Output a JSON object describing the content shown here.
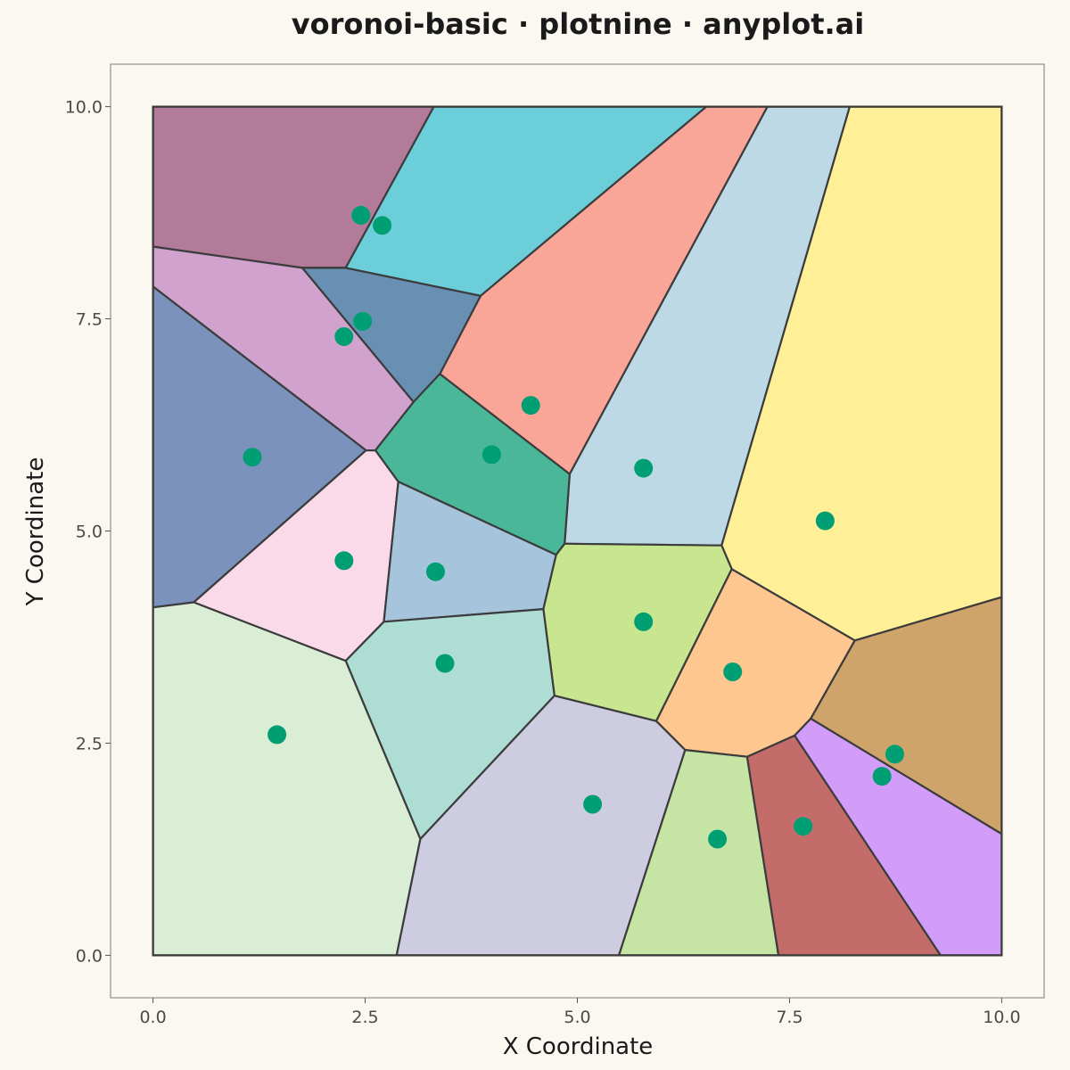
{
  "chart_data": {
    "type": "scatter",
    "subtype": "voronoi",
    "title": "voronoi-basic · plotnine · anyplot.ai",
    "xlabel": "X Coordinate",
    "ylabel": "Y Coordinate",
    "xlim": [
      -0.5,
      10.5
    ],
    "ylim": [
      -0.5,
      10.5
    ],
    "bounds": [
      0,
      10,
      0,
      10
    ],
    "x_ticks": [
      0,
      2.5,
      5,
      7.5,
      10
    ],
    "y_ticks": [
      0,
      2.5,
      5,
      7.5,
      10
    ],
    "x_tick_labels": [
      "0.0",
      "2.5",
      "5.0",
      "7.5",
      "10.0"
    ],
    "y_tick_labels": [
      "0.0",
      "2.5",
      "5.0",
      "7.5",
      "10.0"
    ],
    "grid": false,
    "point_color": "#009E73",
    "edge_color": "#3C3C3C",
    "background": "#FAF8F1",
    "cells": [
      {
        "site": [
          2.45,
          8.72
        ],
        "color": "#B27B99",
        "vertices": [
          [
            0,
            8.35
          ],
          [
            0,
            10
          ],
          [
            3.31,
            10
          ],
          [
            2.27,
            8.1
          ],
          [
            1.76,
            8.1
          ]
        ]
      },
      {
        "site": [
          2.7,
          8.6
        ],
        "color": "#6BCED9",
        "vertices": [
          [
            3.31,
            10
          ],
          [
            6.52,
            10
          ],
          [
            3.86,
            7.77
          ],
          [
            2.27,
            8.1
          ]
        ]
      },
      {
        "site": [
          4.45,
          6.48
        ],
        "color": "#F9A698",
        "vertices": [
          [
            6.52,
            10
          ],
          [
            7.24,
            10
          ],
          [
            4.91,
            5.67
          ],
          [
            3.38,
            6.85
          ],
          [
            3.86,
            7.77
          ]
        ]
      },
      {
        "site": [
          5.78,
          5.74
        ],
        "color": "#BCD9E5",
        "vertices": [
          [
            7.24,
            10
          ],
          [
            8.21,
            10
          ],
          [
            6.7,
            4.83
          ],
          [
            4.85,
            4.85
          ],
          [
            4.91,
            5.67
          ]
        ]
      },
      {
        "site": [
          7.92,
          5.12
        ],
        "color": "#FFEF96",
        "vertices": [
          [
            8.21,
            10
          ],
          [
            10,
            10
          ],
          [
            10,
            4.22
          ],
          [
            8.27,
            3.71
          ],
          [
            6.82,
            4.55
          ],
          [
            6.7,
            4.83
          ]
        ]
      },
      {
        "site": [
          2.25,
          7.29
        ],
        "color": "#D2A2CF",
        "vertices": [
          [
            0,
            8.35
          ],
          [
            1.76,
            8.1
          ],
          [
            3.07,
            6.52
          ],
          [
            2.62,
            5.95
          ],
          [
            2.51,
            5.95
          ],
          [
            0,
            7.88
          ]
        ]
      },
      {
        "site": [
          2.47,
          7.47
        ],
        "color": "#6890B3",
        "vertices": [
          [
            1.76,
            8.1
          ],
          [
            2.27,
            8.1
          ],
          [
            3.86,
            7.77
          ],
          [
            3.38,
            6.85
          ],
          [
            3.07,
            6.52
          ]
        ]
      },
      {
        "site": [
          1.17,
          5.87
        ],
        "color": "#7B93BC",
        "vertices": [
          [
            0,
            7.88
          ],
          [
            2.51,
            5.95
          ],
          [
            0.48,
            4.16
          ],
          [
            0,
            4.1
          ]
        ]
      },
      {
        "site": [
          3.99,
          5.9
        ],
        "color": "#4AB898",
        "vertices": [
          [
            3.07,
            6.52
          ],
          [
            3.38,
            6.85
          ],
          [
            4.91,
            5.67
          ],
          [
            4.85,
            4.85
          ],
          [
            4.75,
            4.72
          ],
          [
            2.89,
            5.58
          ],
          [
            2.62,
            5.95
          ]
        ]
      },
      {
        "site": [
          2.25,
          4.65
        ],
        "color": "#FADAE8",
        "vertices": [
          [
            0.48,
            4.16
          ],
          [
            2.51,
            5.95
          ],
          [
            2.62,
            5.95
          ],
          [
            2.89,
            5.58
          ],
          [
            2.72,
            3.93
          ],
          [
            2.27,
            3.47
          ]
        ]
      },
      {
        "site": [
          3.33,
          4.52
        ],
        "color": "#A6C5DD",
        "vertices": [
          [
            2.89,
            5.58
          ],
          [
            4.75,
            4.72
          ],
          [
            4.6,
            4.08
          ],
          [
            2.72,
            3.93
          ]
        ]
      },
      {
        "site": [
          5.78,
          3.93
        ],
        "color": "#C8E590",
        "vertices": [
          [
            4.75,
            4.72
          ],
          [
            4.85,
            4.85
          ],
          [
            6.7,
            4.83
          ],
          [
            6.82,
            4.55
          ],
          [
            5.93,
            2.76
          ],
          [
            4.73,
            3.06
          ],
          [
            4.6,
            4.08
          ]
        ]
      },
      {
        "site": [
          6.83,
          3.34
        ],
        "color": "#FDC78F",
        "vertices": [
          [
            6.82,
            4.55
          ],
          [
            8.27,
            3.71
          ],
          [
            7.75,
            2.79
          ],
          [
            7.56,
            2.59
          ],
          [
            7.0,
            2.34
          ],
          [
            6.27,
            2.42
          ],
          [
            5.93,
            2.76
          ]
        ]
      },
      {
        "site": [
          8.74,
          2.37
        ],
        "color": "#CEA46B",
        "vertices": [
          [
            8.27,
            3.71
          ],
          [
            10,
            4.22
          ],
          [
            10,
            1.43
          ],
          [
            7.75,
            2.79
          ]
        ]
      },
      {
        "site": [
          3.44,
          3.44
        ],
        "color": "#AEDDD4",
        "vertices": [
          [
            2.27,
            3.47
          ],
          [
            2.72,
            3.93
          ],
          [
            4.6,
            4.08
          ],
          [
            4.73,
            3.06
          ],
          [
            3.15,
            1.37
          ]
        ]
      },
      {
        "site": [
          1.46,
          2.6
        ],
        "color": "#DAEED5",
        "vertices": [
          [
            0,
            4.1
          ],
          [
            0.48,
            4.16
          ],
          [
            2.27,
            3.47
          ],
          [
            3.15,
            1.37
          ],
          [
            2.87,
            0
          ],
          [
            0,
            0
          ]
        ]
      },
      {
        "site": [
          5.18,
          1.78
        ],
        "color": "#CECCE0",
        "vertices": [
          [
            3.15,
            1.37
          ],
          [
            4.73,
            3.06
          ],
          [
            5.93,
            2.76
          ],
          [
            6.27,
            2.42
          ],
          [
            5.49,
            0
          ],
          [
            2.87,
            0
          ]
        ]
      },
      {
        "site": [
          6.65,
          1.37
        ],
        "color": "#C6E5A5",
        "vertices": [
          [
            6.27,
            2.42
          ],
          [
            7.0,
            2.34
          ],
          [
            7.37,
            0
          ],
          [
            5.49,
            0
          ]
        ]
      },
      {
        "site": [
          7.66,
          1.52
        ],
        "color": "#C46C69",
        "vertices": [
          [
            7.0,
            2.34
          ],
          [
            7.56,
            2.59
          ],
          [
            9.28,
            0
          ],
          [
            7.37,
            0
          ]
        ]
      },
      {
        "site": [
          8.59,
          2.11
        ],
        "color": "#D29CF9",
        "vertices": [
          [
            7.56,
            2.59
          ],
          [
            7.75,
            2.79
          ],
          [
            10,
            1.43
          ],
          [
            10,
            0
          ],
          [
            9.28,
            0
          ]
        ]
      }
    ]
  }
}
